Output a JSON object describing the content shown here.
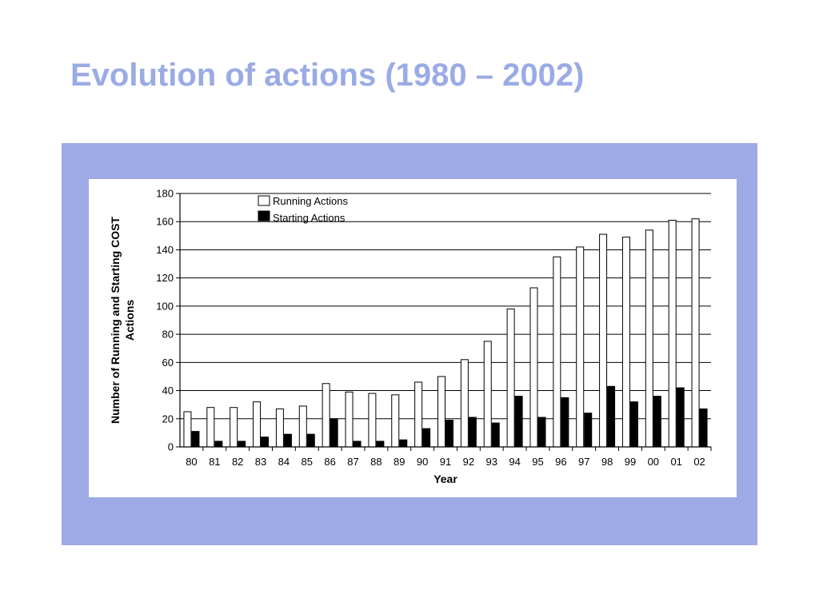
{
  "slide": {
    "title": "Evolution of actions (1980 – 2002)"
  },
  "colors": {
    "title": "#9aabe5",
    "frame": "#9daae6",
    "series_running": "#ffffff",
    "series_starting": "#000000"
  },
  "chart_data": {
    "type": "bar",
    "title": "",
    "xlabel": "Year",
    "ylabel_lines": [
      "Number of Running and Starting COST",
      "Actions"
    ],
    "ylim": [
      0,
      180
    ],
    "yticks": [
      0,
      20,
      40,
      60,
      80,
      100,
      120,
      140,
      160,
      180
    ],
    "grid": true,
    "legend_position": "top-left",
    "categories": [
      "80",
      "81",
      "82",
      "83",
      "84",
      "85",
      "86",
      "87",
      "88",
      "89",
      "90",
      "91",
      "92",
      "93",
      "94",
      "95",
      "96",
      "97",
      "98",
      "99",
      "00",
      "01",
      "02"
    ],
    "series": [
      {
        "name": "Running Actions",
        "color": "#ffffff",
        "values": [
          25,
          28,
          28,
          32,
          27,
          29,
          45,
          39,
          38,
          37,
          46,
          50,
          62,
          75,
          98,
          113,
          135,
          142,
          151,
          149,
          154,
          161,
          162
        ]
      },
      {
        "name": "Starting Actions",
        "color": "#000000",
        "values": [
          11,
          4,
          4,
          7,
          9,
          9,
          20,
          4,
          4,
          5,
          13,
          19,
          21,
          17,
          36,
          21,
          35,
          24,
          43,
          32,
          36,
          42,
          27
        ]
      }
    ]
  }
}
